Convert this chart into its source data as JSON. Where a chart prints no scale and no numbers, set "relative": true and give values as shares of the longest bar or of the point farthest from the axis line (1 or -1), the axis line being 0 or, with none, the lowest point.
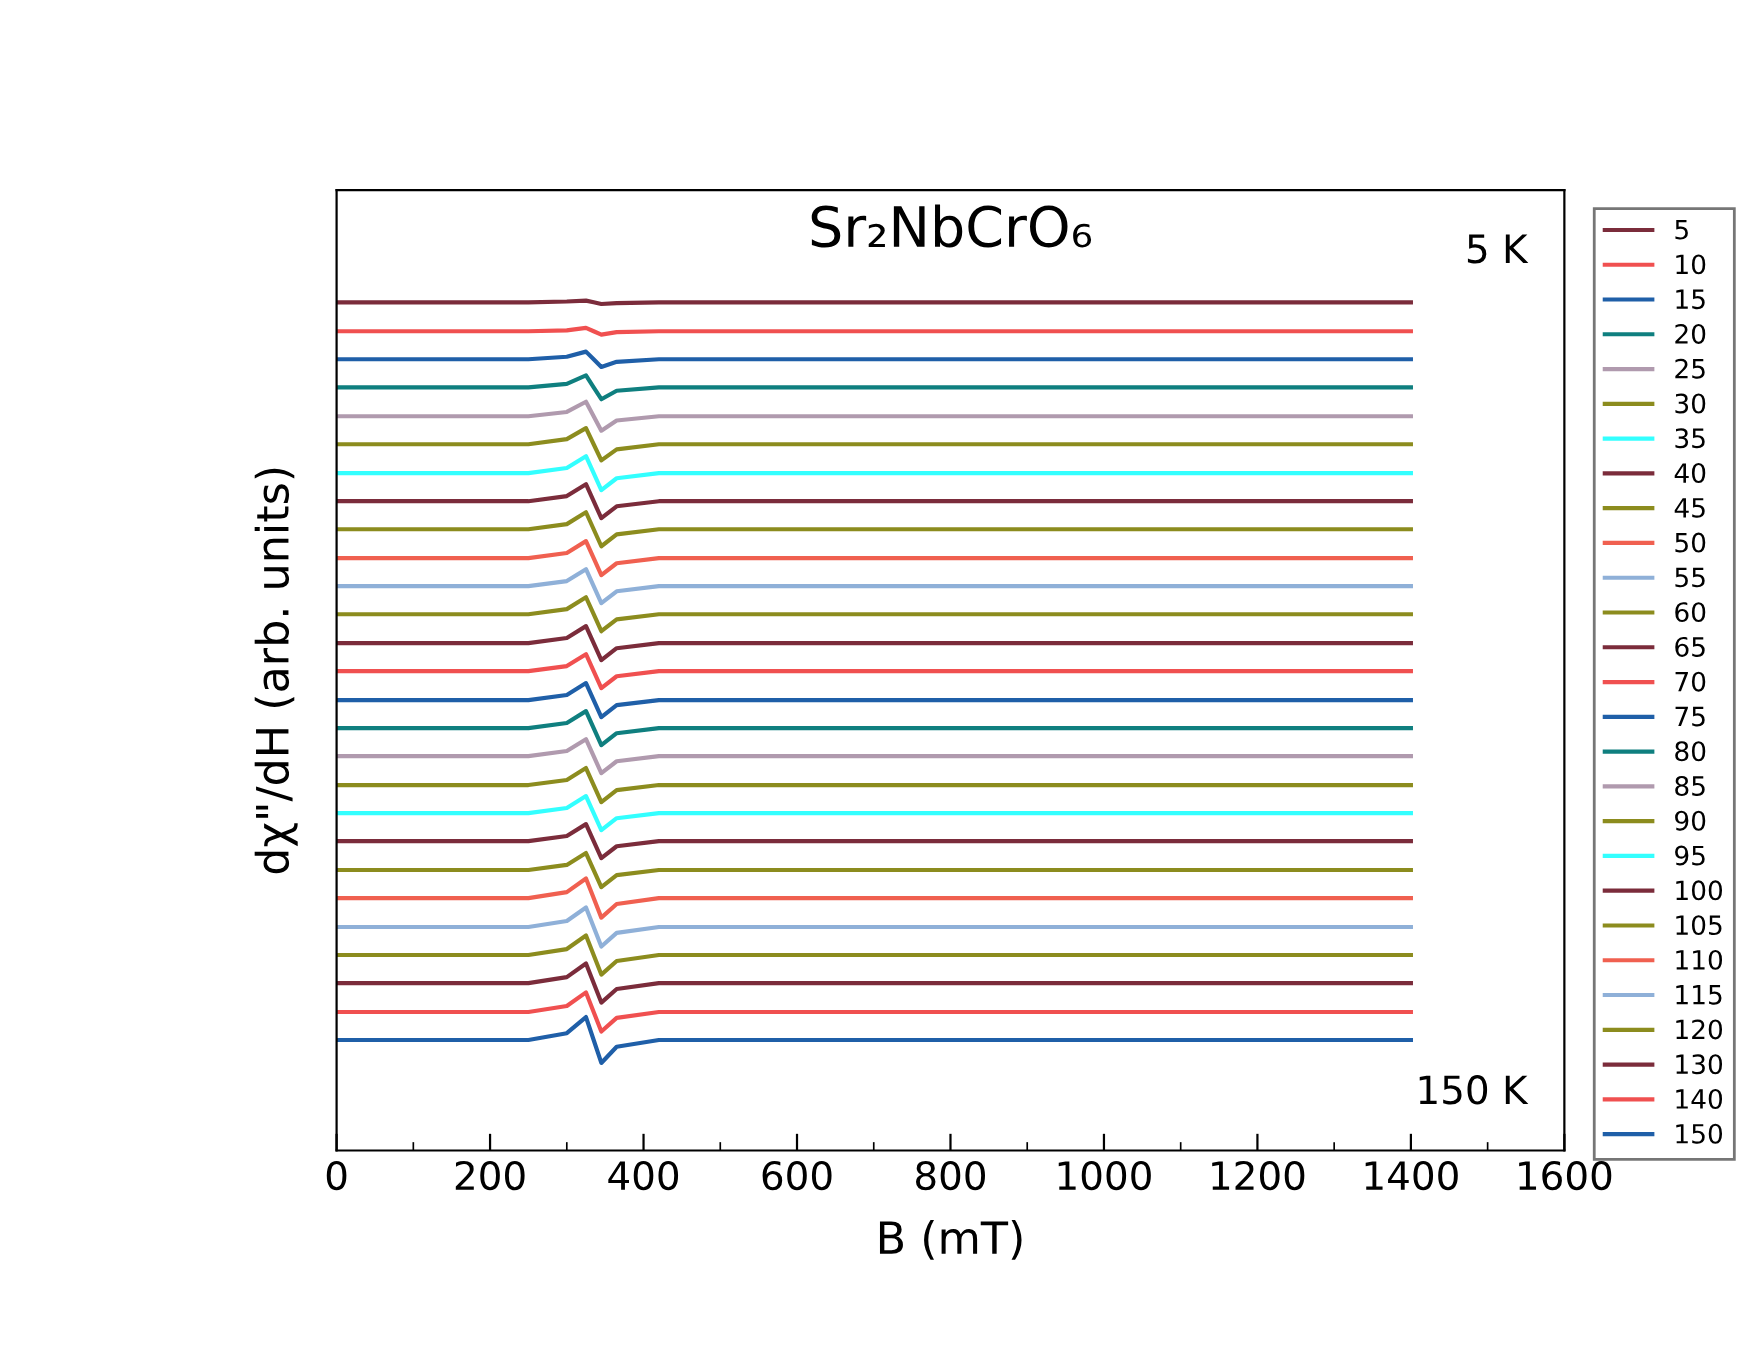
{
  "chart_data": {
    "type": "line",
    "title": "Sr₂NbCrO₆",
    "xlabel": "B (mT)",
    "ylabel": "dχ\"/dH (arb. units)",
    "relative": true,
    "xlim": [
      0,
      1600
    ],
    "xticks": [
      0,
      200,
      400,
      600,
      800,
      1000,
      1200,
      1400,
      1600
    ],
    "legend": "right",
    "grid": false,
    "annotations": [
      "5 K",
      "150 K"
    ],
    "x": [
      0,
      250,
      300,
      325,
      335,
      345,
      365,
      420,
      1400
    ],
    "series": [
      {
        "name": "5",
        "color": "#7b2c3b",
        "values": [
          0.998,
          0.998,
          0.999,
          1.0,
          0.998,
          0.996,
          0.997,
          0.998,
          0.998
        ]
      },
      {
        "name": "10",
        "color": "#f05050",
        "values": [
          0.964,
          0.964,
          0.965,
          0.968,
          0.964,
          0.96,
          0.963,
          0.964,
          0.964
        ]
      },
      {
        "name": "15",
        "color": "#1f5fa8",
        "values": [
          0.931,
          0.931,
          0.934,
          0.94,
          0.931,
          0.922,
          0.928,
          0.931,
          0.931
        ]
      },
      {
        "name": "20",
        "color": "#0f7f7f",
        "values": [
          0.898,
          0.898,
          0.902,
          0.912,
          0.898,
          0.884,
          0.894,
          0.898,
          0.898
        ]
      },
      {
        "name": "25",
        "color": "#b09aae",
        "values": [
          0.864,
          0.864,
          0.869,
          0.881,
          0.864,
          0.847,
          0.859,
          0.864,
          0.864
        ]
      },
      {
        "name": "30",
        "color": "#8c8c1e",
        "values": [
          0.831,
          0.831,
          0.837,
          0.85,
          0.831,
          0.812,
          0.825,
          0.831,
          0.831
        ]
      },
      {
        "name": "35",
        "color": "#33ffff",
        "values": [
          0.797,
          0.797,
          0.803,
          0.817,
          0.797,
          0.777,
          0.791,
          0.797,
          0.797
        ]
      },
      {
        "name": "40",
        "color": "#7b2c3b",
        "values": [
          0.764,
          0.764,
          0.77,
          0.784,
          0.764,
          0.744,
          0.758,
          0.764,
          0.764
        ]
      },
      {
        "name": "45",
        "color": "#8c8c1e",
        "values": [
          0.731,
          0.731,
          0.737,
          0.751,
          0.731,
          0.711,
          0.725,
          0.731,
          0.731
        ]
      },
      {
        "name": "50",
        "color": "#f06050",
        "values": [
          0.697,
          0.697,
          0.703,
          0.717,
          0.697,
          0.677,
          0.691,
          0.697,
          0.697
        ]
      },
      {
        "name": "55",
        "color": "#8fb0d8",
        "values": [
          0.664,
          0.664,
          0.67,
          0.684,
          0.664,
          0.644,
          0.658,
          0.664,
          0.664
        ]
      },
      {
        "name": "60",
        "color": "#8c8c1e",
        "values": [
          0.631,
          0.631,
          0.637,
          0.651,
          0.631,
          0.611,
          0.625,
          0.631,
          0.631
        ]
      },
      {
        "name": "65",
        "color": "#7b2c3b",
        "values": [
          0.597,
          0.597,
          0.603,
          0.617,
          0.597,
          0.577,
          0.591,
          0.597,
          0.597
        ]
      },
      {
        "name": "70",
        "color": "#f05050",
        "values": [
          0.564,
          0.564,
          0.57,
          0.584,
          0.564,
          0.544,
          0.558,
          0.564,
          0.564
        ]
      },
      {
        "name": "75",
        "color": "#1f5fa8",
        "values": [
          0.53,
          0.53,
          0.536,
          0.55,
          0.53,
          0.51,
          0.524,
          0.53,
          0.53
        ]
      },
      {
        "name": "80",
        "color": "#0f7f7f",
        "values": [
          0.497,
          0.497,
          0.503,
          0.517,
          0.497,
          0.477,
          0.491,
          0.497,
          0.497
        ]
      },
      {
        "name": "85",
        "color": "#b09aae",
        "values": [
          0.464,
          0.464,
          0.47,
          0.484,
          0.464,
          0.444,
          0.458,
          0.464,
          0.464
        ]
      },
      {
        "name": "90",
        "color": "#8c8c1e",
        "values": [
          0.43,
          0.43,
          0.436,
          0.45,
          0.43,
          0.41,
          0.424,
          0.43,
          0.43
        ]
      },
      {
        "name": "95",
        "color": "#33ffff",
        "values": [
          0.397,
          0.397,
          0.403,
          0.417,
          0.397,
          0.377,
          0.391,
          0.397,
          0.397
        ]
      },
      {
        "name": "100",
        "color": "#7b2c3b",
        "values": [
          0.364,
          0.364,
          0.37,
          0.384,
          0.364,
          0.344,
          0.358,
          0.364,
          0.364
        ]
      },
      {
        "name": "105",
        "color": "#8c8c1e",
        "values": [
          0.33,
          0.33,
          0.336,
          0.35,
          0.33,
          0.31,
          0.324,
          0.33,
          0.33
        ]
      },
      {
        "name": "110",
        "color": "#f06050",
        "values": [
          0.297,
          0.297,
          0.304,
          0.32,
          0.297,
          0.274,
          0.29,
          0.297,
          0.297
        ]
      },
      {
        "name": "115",
        "color": "#8fb0d8",
        "values": [
          0.263,
          0.263,
          0.27,
          0.286,
          0.263,
          0.24,
          0.256,
          0.263,
          0.263
        ]
      },
      {
        "name": "120",
        "color": "#8c8c1e",
        "values": [
          0.23,
          0.23,
          0.237,
          0.253,
          0.23,
          0.207,
          0.223,
          0.23,
          0.23
        ]
      },
      {
        "name": "130",
        "color": "#7b2c3b",
        "values": [
          0.197,
          0.197,
          0.204,
          0.22,
          0.197,
          0.174,
          0.19,
          0.197,
          0.197
        ]
      },
      {
        "name": "140",
        "color": "#f05050",
        "values": [
          0.163,
          0.163,
          0.17,
          0.186,
          0.163,
          0.14,
          0.156,
          0.163,
          0.163
        ]
      },
      {
        "name": "150",
        "color": "#1f5fa8",
        "values": [
          0.13,
          0.13,
          0.138,
          0.157,
          0.13,
          0.103,
          0.122,
          0.13,
          0.13
        ]
      }
    ]
  }
}
